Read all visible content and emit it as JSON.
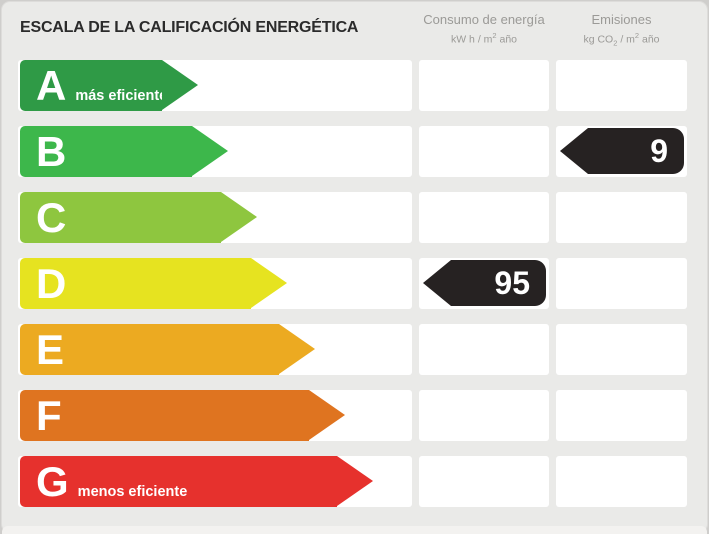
{
  "title": "ESCALA DE LA CALIFICACIÓN ENERGÉTICA",
  "columns": {
    "consumo": {
      "label": "Consumo de energía",
      "unit": [
        "kW h / m",
        "2",
        " año"
      ]
    },
    "emisiones": {
      "label": "Emisiones",
      "unit": [
        "kg CO",
        "2",
        " / m",
        "2",
        " año"
      ]
    }
  },
  "rows": [
    {
      "grade": "A",
      "note": "más eficiente",
      "color": "#2f9a46",
      "arrow_len": 178
    },
    {
      "grade": "B",
      "note": "",
      "color": "#3db74b",
      "arrow_len": 208,
      "emisiones": 9
    },
    {
      "grade": "C",
      "note": "",
      "color": "#8ec63f",
      "arrow_len": 237
    },
    {
      "grade": "D",
      "note": "",
      "color": "#e6e320",
      "arrow_len": 267,
      "consumo": 95
    },
    {
      "grade": "E",
      "note": "",
      "color": "#ecaa21",
      "arrow_len": 295
    },
    {
      "grade": "F",
      "note": "",
      "color": "#df7420",
      "arrow_len": 325
    },
    {
      "grade": "G",
      "note": "menos eficiente",
      "color": "#e6312d",
      "arrow_len": 353
    }
  ],
  "palette": {
    "panel_background": "#eaeae8",
    "title_color": "#2b2b2b",
    "header_color": "#9b9a97",
    "value_arrow_black": "#262222"
  },
  "chart_data": {
    "type": "bar",
    "title": "ESCALA DE LA CALIFICACIÓN ENERGÉTICA",
    "categories": [
      "A",
      "B",
      "C",
      "D",
      "E",
      "F",
      "G"
    ],
    "bar_colors": [
      "#2f9a46",
      "#3db74b",
      "#8ec63f",
      "#e6e320",
      "#ecaa21",
      "#df7420",
      "#e6312d"
    ],
    "annotations": {
      "A": "más eficiente",
      "G": "menos eficiente"
    },
    "series": [
      {
        "name": "Consumo de energía (kW h / m2 año)",
        "values": [
          null,
          null,
          null,
          95,
          null,
          null,
          null
        ]
      },
      {
        "name": "Emisiones (kg CO2 / m2 año)",
        "values": [
          null,
          9,
          null,
          null,
          null,
          null,
          null
        ]
      }
    ],
    "legend_position": "top",
    "grid": false
  }
}
